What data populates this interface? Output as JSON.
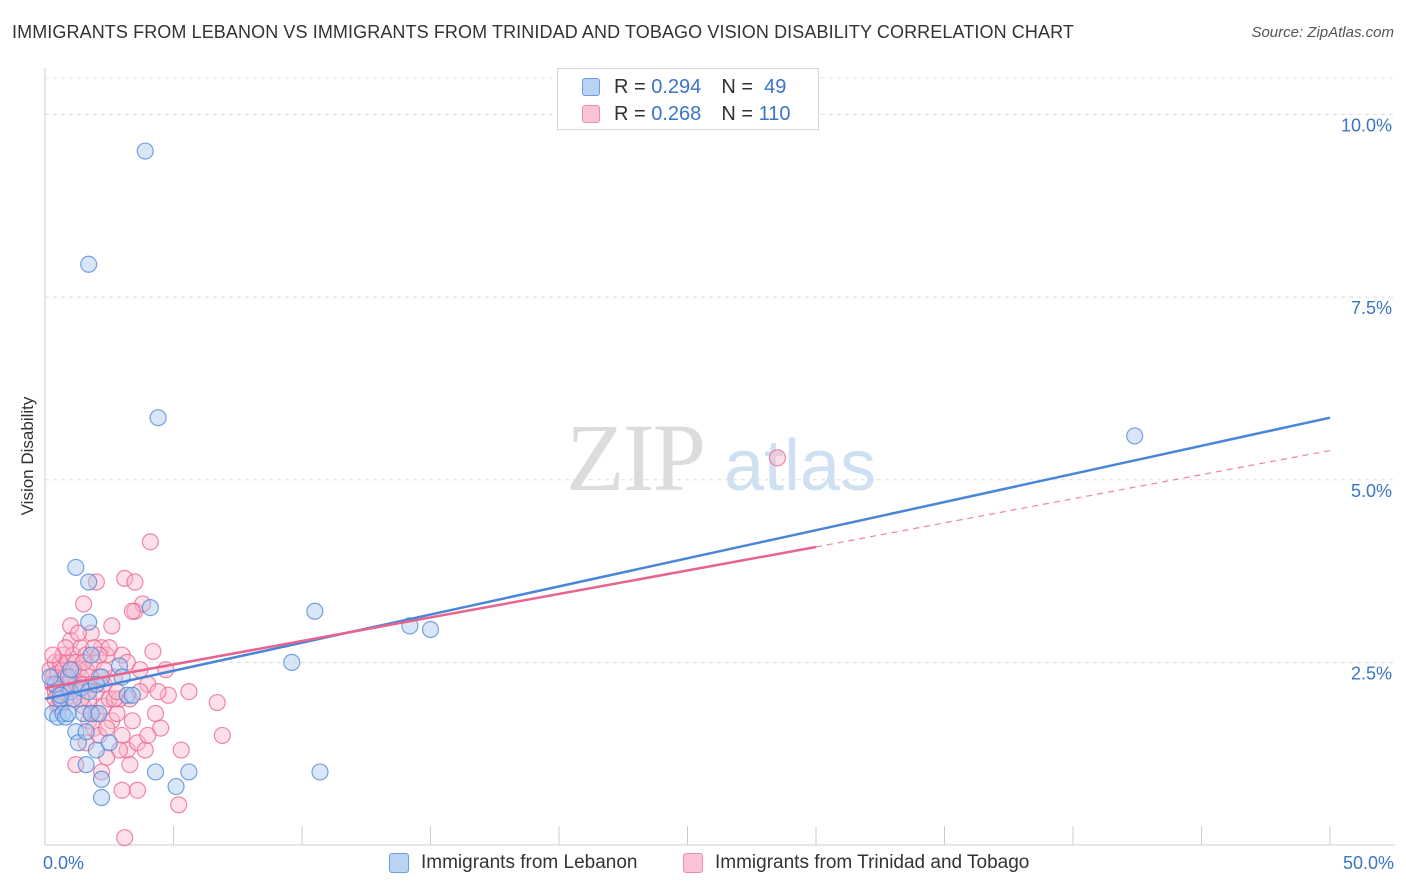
{
  "title": "IMMIGRANTS FROM LEBANON VS IMMIGRANTS FROM TRINIDAD AND TOBAGO VISION DISABILITY CORRELATION CHART",
  "source": "Source: ZipAtlas.com",
  "watermark": {
    "zip": "ZIP",
    "atlas": "atlas"
  },
  "legend": {
    "rows": [
      {
        "r_label": "R =",
        "r_value": "0.294",
        "n_label": "N =",
        "n_value": "49"
      },
      {
        "r_label": "R =",
        "r_value": "0.268",
        "n_label": "N =",
        "n_value": "110"
      }
    ]
  },
  "chart_data": {
    "type": "scatter",
    "title": "IMMIGRANTS FROM LEBANON VS IMMIGRANTS FROM TRINIDAD AND TOBAGO VISION DISABILITY CORRELATION CHART",
    "xlabel": "",
    "ylabel": "Vision Disability",
    "xlim": [
      0,
      50
    ],
    "ylim": [
      0,
      10.5
    ],
    "x_ticks": [
      0,
      5,
      10,
      15,
      20,
      25,
      30,
      35,
      40,
      45,
      50
    ],
    "x_tick_labels": {
      "0": "0.0%",
      "50": "50.0%"
    },
    "y_ticks": [
      2.5,
      5.0,
      7.5,
      10.0
    ],
    "y_tick_labels": [
      "2.5%",
      "5.0%",
      "7.5%",
      "10.0%"
    ],
    "grid": true,
    "series": [
      {
        "name": "Immigrants from Lebanon",
        "color": "#4a86d8",
        "fill": "#a8c8f0",
        "r": 0.294,
        "n": 49,
        "trend": {
          "x0": 0,
          "y0": 2.0,
          "x1": 50,
          "y1": 5.85,
          "style": "solid"
        },
        "points": [
          [
            0.3,
            1.8
          ],
          [
            0.5,
            1.75
          ],
          [
            0.6,
            2.0
          ],
          [
            0.7,
            1.8
          ],
          [
            0.8,
            1.75
          ],
          [
            1.0,
            2.1
          ],
          [
            1.1,
            2.0
          ],
          [
            1.2,
            1.55
          ],
          [
            1.3,
            1.4
          ],
          [
            1.5,
            1.8
          ],
          [
            0.4,
            2.2
          ],
          [
            0.9,
            2.3
          ],
          [
            1.4,
            2.15
          ],
          [
            1.6,
            1.55
          ],
          [
            1.7,
            2.1
          ],
          [
            1.8,
            2.6
          ],
          [
            1.6,
            1.1
          ],
          [
            1.7,
            7.95
          ],
          [
            1.7,
            3.05
          ],
          [
            1.2,
            3.8
          ],
          [
            1.7,
            3.6
          ],
          [
            1.8,
            1.8
          ],
          [
            2.0,
            1.3
          ],
          [
            2.1,
            1.8
          ],
          [
            2.2,
            0.9
          ],
          [
            2.2,
            0.65
          ],
          [
            2.2,
            2.3
          ],
          [
            2.5,
            1.4
          ],
          [
            2.9,
            2.45
          ],
          [
            3.0,
            2.3
          ],
          [
            3.2,
            2.05
          ],
          [
            3.4,
            2.05
          ],
          [
            3.9,
            9.5
          ],
          [
            4.1,
            3.25
          ],
          [
            4.3,
            1.0
          ],
          [
            4.4,
            5.85
          ],
          [
            5.1,
            0.8
          ],
          [
            5.6,
            1.0
          ],
          [
            9.6,
            2.5
          ],
          [
            10.5,
            3.2
          ],
          [
            10.7,
            1.0
          ],
          [
            14.2,
            3.0
          ],
          [
            15.0,
            2.95
          ],
          [
            42.4,
            5.6
          ],
          [
            0.2,
            2.3
          ],
          [
            0.6,
            2.05
          ],
          [
            0.9,
            1.8
          ],
          [
            1.0,
            2.4
          ],
          [
            2.0,
            2.2
          ]
        ]
      },
      {
        "name": "Immigrants from Trinidad and Tobago",
        "color": "#e8638e",
        "fill": "#f8b8cc",
        "r": 0.268,
        "n": 110,
        "trend": {
          "x0": 0,
          "y0": 2.15,
          "x1": 30,
          "y1": 4.08,
          "style": "solid"
        },
        "trend_extension": {
          "x0": 30,
          "y0": 4.08,
          "x1": 50,
          "y1": 5.4,
          "style": "dashed"
        },
        "points": [
          [
            0.2,
            2.4
          ],
          [
            0.3,
            2.3
          ],
          [
            0.3,
            2.2
          ],
          [
            0.4,
            2.5
          ],
          [
            0.4,
            2.1
          ],
          [
            0.5,
            2.35
          ],
          [
            0.5,
            2.05
          ],
          [
            0.6,
            2.5
          ],
          [
            0.6,
            2.2
          ],
          [
            0.7,
            2.4
          ],
          [
            0.7,
            2.6
          ],
          [
            0.8,
            2.3
          ],
          [
            0.8,
            2.0
          ],
          [
            0.9,
            2.5
          ],
          [
            0.9,
            2.15
          ],
          [
            1.0,
            2.8
          ],
          [
            1.0,
            2.3
          ],
          [
            1.1,
            2.6
          ],
          [
            1.1,
            2.0
          ],
          [
            1.2,
            2.2
          ],
          [
            1.2,
            2.5
          ],
          [
            1.3,
            2.4
          ],
          [
            1.3,
            2.1
          ],
          [
            1.4,
            2.3
          ],
          [
            1.4,
            2.7
          ],
          [
            1.5,
            1.9
          ],
          [
            1.5,
            2.2
          ],
          [
            1.6,
            2.6
          ],
          [
            1.6,
            2.4
          ],
          [
            1.7,
            2.0
          ],
          [
            1.7,
            1.7
          ],
          [
            1.8,
            2.2
          ],
          [
            1.8,
            2.9
          ],
          [
            1.9,
            1.6
          ],
          [
            1.9,
            2.5
          ],
          [
            2.0,
            1.8
          ],
          [
            2.0,
            2.1
          ],
          [
            2.1,
            2.3
          ],
          [
            2.1,
            1.5
          ],
          [
            2.2,
            2.7
          ],
          [
            2.3,
            1.9
          ],
          [
            2.3,
            2.2
          ],
          [
            2.4,
            1.2
          ],
          [
            2.4,
            2.6
          ],
          [
            2.5,
            2.0
          ],
          [
            2.6,
            1.7
          ],
          [
            2.6,
            3.0
          ],
          [
            2.7,
            2.3
          ],
          [
            2.8,
            1.8
          ],
          [
            2.9,
            2.0
          ],
          [
            3.0,
            1.5
          ],
          [
            3.0,
            2.6
          ],
          [
            3.1,
            3.65
          ],
          [
            3.2,
            1.3
          ],
          [
            3.3,
            2.0
          ],
          [
            3.4,
            1.7
          ],
          [
            3.5,
            3.2
          ],
          [
            3.5,
            3.6
          ],
          [
            3.6,
            1.4
          ],
          [
            3.7,
            2.4
          ],
          [
            3.8,
            3.3
          ],
          [
            3.9,
            1.3
          ],
          [
            4.0,
            2.2
          ],
          [
            4.1,
            4.15
          ],
          [
            4.2,
            2.65
          ],
          [
            4.3,
            1.8
          ],
          [
            4.5,
            1.6
          ],
          [
            4.7,
            2.4
          ],
          [
            4.8,
            2.05
          ],
          [
            5.2,
            0.55
          ],
          [
            5.3,
            1.3
          ],
          [
            5.6,
            2.1
          ],
          [
            6.7,
            1.95
          ],
          [
            6.9,
            1.5
          ],
          [
            1.0,
            3.0
          ],
          [
            1.5,
            3.3
          ],
          [
            2.0,
            3.6
          ],
          [
            2.5,
            2.7
          ],
          [
            3.0,
            0.75
          ],
          [
            3.1,
            0.1
          ],
          [
            1.2,
            1.1
          ],
          [
            1.6,
            1.4
          ],
          [
            2.2,
            1.0
          ],
          [
            0.5,
            1.9
          ],
          [
            0.8,
            2.7
          ],
          [
            1.1,
            2.4
          ],
          [
            1.4,
            2.0
          ],
          [
            2.7,
            2.0
          ],
          [
            3.3,
            1.1
          ],
          [
            3.6,
            0.75
          ],
          [
            4.0,
            1.5
          ],
          [
            4.4,
            2.1
          ],
          [
            0.3,
            2.6
          ],
          [
            0.6,
            1.9
          ],
          [
            1.9,
            2.7
          ],
          [
            2.3,
            2.4
          ],
          [
            2.8,
            2.1
          ],
          [
            3.4,
            3.2
          ],
          [
            0.4,
            2.0
          ],
          [
            0.9,
            2.2
          ],
          [
            1.3,
            2.9
          ],
          [
            1.8,
            1.8
          ],
          [
            2.1,
            2.6
          ],
          [
            2.4,
            1.6
          ],
          [
            2.9,
            1.3
          ],
          [
            3.2,
            2.5
          ],
          [
            3.7,
            2.1
          ],
          [
            0.7,
            2.1
          ],
          [
            28.5,
            5.3
          ],
          [
            1.5,
            2.5
          ]
        ]
      }
    ]
  },
  "bottom_legend": [
    {
      "label": "Immigrants from Lebanon"
    },
    {
      "label": "Immigrants from Trinidad and Tobago"
    }
  ]
}
